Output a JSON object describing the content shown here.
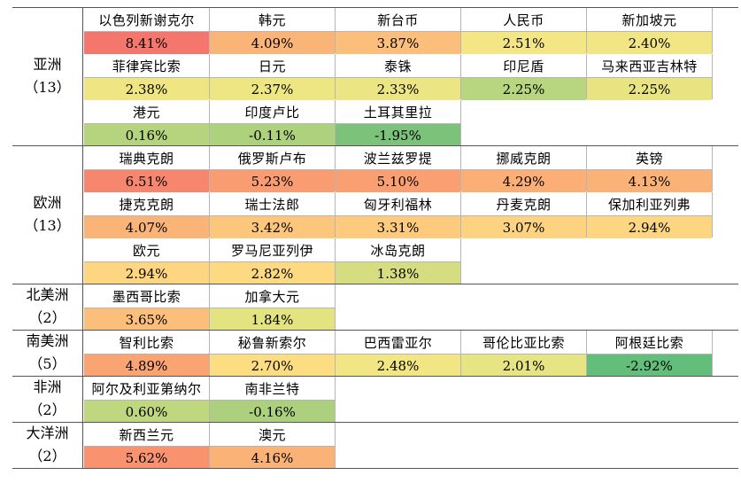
{
  "regions": [
    {
      "name": "亚洲",
      "count": "（13）",
      "rows": 3,
      "currencies": [
        {
          "name": "以色列新谢克尔",
          "value": "8.41%",
          "color": "#f5766c"
        },
        {
          "name": "韩元",
          "value": "4.09%",
          "color": "#fbb477"
        },
        {
          "name": "新台币",
          "value": "3.87%",
          "color": "#fbbe7b"
        },
        {
          "name": "人民币",
          "value": "2.51%",
          "color": "#f4e684"
        },
        {
          "name": "新加坡元",
          "value": "2.40%",
          "color": "#f1e683"
        },
        {
          "name": "菲律宾比索",
          "value": "2.38%",
          "color": "#efe683"
        },
        {
          "name": "日元",
          "value": "2.37%",
          "color": "#eee683"
        },
        {
          "name": "泰铢",
          "value": "2.33%",
          "color": "#ece583"
        },
        {
          "name": "印尼盾",
          "value": "2.25%",
          "color": "#b8d57f"
        },
        {
          "name": "马来西亚吉林特",
          "value": "2.25%",
          "color": "#e8e482"
        },
        {
          "name": "港元",
          "value": "0.16%",
          "color": "#b6d47e"
        },
        {
          "name": "印度卢比",
          "value": "-0.11%",
          "color": "#aed17e"
        },
        {
          "name": "土耳其里拉",
          "value": "-1.95%",
          "color": "#7cc27a"
        }
      ]
    },
    {
      "name": "欧洲",
      "count": "（13）",
      "rows": 3,
      "currencies": [
        {
          "name": "瑞典克朗",
          "value": "6.51%",
          "color": "#f7866e"
        },
        {
          "name": "俄罗斯卢布",
          "value": "5.23%",
          "color": "#f99c71"
        },
        {
          "name": "波兰兹罗提",
          "value": "5.10%",
          "color": "#f99f72"
        },
        {
          "name": "挪威克朗",
          "value": "4.29%",
          "color": "#fbae76"
        },
        {
          "name": "英镑",
          "value": "4.13%",
          "color": "#fbb277"
        },
        {
          "name": "捷克克朗",
          "value": "4.07%",
          "color": "#fbb477"
        },
        {
          "name": "瑞士法郎",
          "value": "3.42%",
          "color": "#fcc67d"
        },
        {
          "name": "匈牙利福林",
          "value": "3.31%",
          "color": "#fdca7e"
        },
        {
          "name": "丹麦克朗",
          "value": "3.07%",
          "color": "#fdd280"
        },
        {
          "name": "保加利亚列弗",
          "value": "2.94%",
          "color": "#fed681"
        },
        {
          "name": "欧元",
          "value": "2.94%",
          "color": "#fed681"
        },
        {
          "name": "罗马尼亚列伊",
          "value": "2.82%",
          "color": "#fdd982"
        },
        {
          "name": "冰岛克朗",
          "value": "1.38%",
          "color": "#d6dd81"
        }
      ]
    },
    {
      "name": "北美洲",
      "count": "（2）",
      "rows": 1,
      "currencies": [
        {
          "name": "墨西哥比索",
          "value": "3.65%",
          "color": "#fcbf7b"
        },
        {
          "name": "加拿大元",
          "value": "1.84%",
          "color": "#e4e382"
        }
      ]
    },
    {
      "name": "南美洲",
      "count": "（5）",
      "rows": 1,
      "currencies": [
        {
          "name": "智利比索",
          "value": "4.89%",
          "color": "#faa373"
        },
        {
          "name": "秘鲁新索尔",
          "value": "2.70%",
          "color": "#fddd82"
        },
        {
          "name": "巴西雷亚尔",
          "value": "2.48%",
          "color": "#f2e684"
        },
        {
          "name": "哥伦比亚比索",
          "value": "2.01%",
          "color": "#e6e483"
        },
        {
          "name": "阿根廷比索",
          "value": "-2.92%",
          "color": "#63be7b"
        }
      ]
    },
    {
      "name": "非洲",
      "count": "（2）",
      "rows": 1,
      "currencies": [
        {
          "name": "阿尔及利亚第纳尔",
          "value": "0.60%",
          "color": "#bfd77f"
        },
        {
          "name": "南非兰特",
          "value": "-0.16%",
          "color": "#acd07e"
        }
      ]
    },
    {
      "name": "大洋洲",
      "count": "（2）",
      "rows": 1,
      "currencies": [
        {
          "name": "新西兰元",
          "value": "5.62%",
          "color": "#f8926f"
        },
        {
          "name": "澳元",
          "value": "4.16%",
          "color": "#fbb277"
        }
      ]
    }
  ]
}
